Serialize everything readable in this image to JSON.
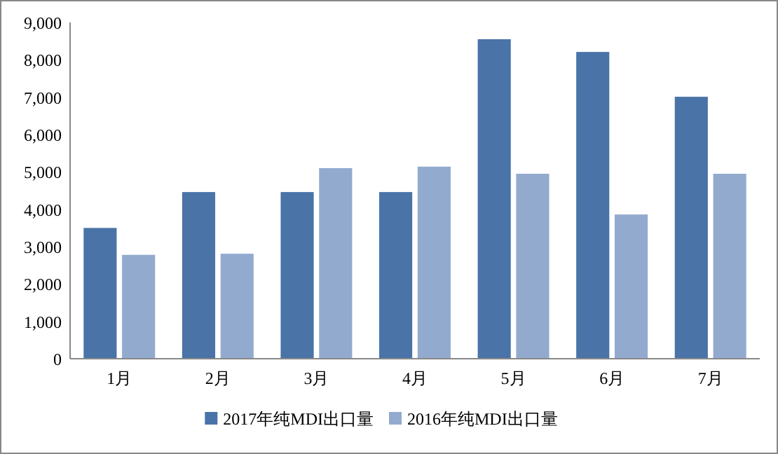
{
  "chart_data": {
    "type": "bar",
    "categories": [
      "1月",
      "2月",
      "3月",
      "4月",
      "5月",
      "6月",
      "7月"
    ],
    "series": [
      {
        "name": "2017年纯MDI出口量",
        "color": "#4a73a8",
        "values": [
          3500,
          4460,
          4460,
          4460,
          8550,
          8210,
          7010
        ]
      },
      {
        "name": "2016年纯MDI出口量",
        "color": "#93aacf",
        "values": [
          2780,
          2810,
          5100,
          5140,
          4950,
          3860,
          4950
        ]
      }
    ],
    "ylim": [
      0,
      9000
    ],
    "yticks": [
      {
        "value": 0,
        "label": "0"
      },
      {
        "value": 1000,
        "label": "1,000"
      },
      {
        "value": 2000,
        "label": "2,000"
      },
      {
        "value": 3000,
        "label": "3,000"
      },
      {
        "value": 4000,
        "label": "4,000"
      },
      {
        "value": 5000,
        "label": "5,000"
      },
      {
        "value": 6000,
        "label": "6,000"
      },
      {
        "value": 7000,
        "label": "7,000"
      },
      {
        "value": 8000,
        "label": "8,000"
      },
      {
        "value": 9000,
        "label": "9,000"
      }
    ],
    "grid": false,
    "legend": "bottom"
  }
}
